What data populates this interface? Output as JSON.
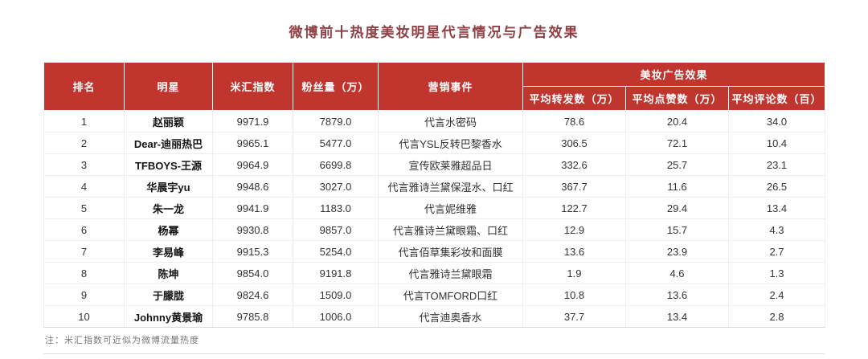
{
  "colors": {
    "header_bg": "#c1352f",
    "title_color": "#8e4044"
  },
  "note": "注：米汇指数可近似为微博流量热度",
  "chart_data": {
    "type": "table",
    "title": "微博前十热度美妆明星代言情况与广告效果",
    "column_group": "美妆广告效果",
    "columns": [
      "排名",
      "明星",
      "米汇指数",
      "粉丝量（万）",
      "营销事件",
      "平均转发数（万）",
      "平均点赞数（万）",
      "平均评论数（百）"
    ],
    "rows": [
      [
        "1",
        "赵丽颖",
        "9971.9",
        "7879.0",
        "代言水密码",
        "78.6",
        "20.4",
        "34.0"
      ],
      [
        "2",
        "Dear-迪丽热巴",
        "9965.1",
        "5477.0",
        "代言YSL反转巴黎香水",
        "306.5",
        "72.1",
        "10.4"
      ],
      [
        "3",
        "TFBOYS-王源",
        "9964.9",
        "6699.8",
        "宣传欧莱雅超品日",
        "332.6",
        "25.7",
        "23.1"
      ],
      [
        "4",
        "华晨宇yu",
        "9948.6",
        "3027.0",
        "代言雅诗兰黛保湿水、口红",
        "367.7",
        "11.6",
        "26.5"
      ],
      [
        "5",
        "朱一龙",
        "9941.9",
        "1183.0",
        "代言妮维雅",
        "122.7",
        "29.4",
        "13.4"
      ],
      [
        "6",
        "杨幂",
        "9930.8",
        "9857.0",
        "代言雅诗兰黛眼霜、口红",
        "12.9",
        "15.7",
        "4.3"
      ],
      [
        "7",
        "李易峰",
        "9915.3",
        "5254.0",
        "代言佰草集彩妆和面膜",
        "13.6",
        "23.9",
        "2.7"
      ],
      [
        "8",
        "陈坤",
        "9854.0",
        "9191.8",
        "代言雅诗兰黛眼霜",
        "1.9",
        "4.6",
        "1.3"
      ],
      [
        "9",
        "于朦胧",
        "9824.6",
        "1509.0",
        "代言TOMFORD口红",
        "10.8",
        "13.6",
        "2.4"
      ],
      [
        "10",
        "Johnny黄景瑜",
        "9785.8",
        "1006.0",
        "代言迪奥香水",
        "37.7",
        "13.4",
        "2.8"
      ]
    ]
  }
}
